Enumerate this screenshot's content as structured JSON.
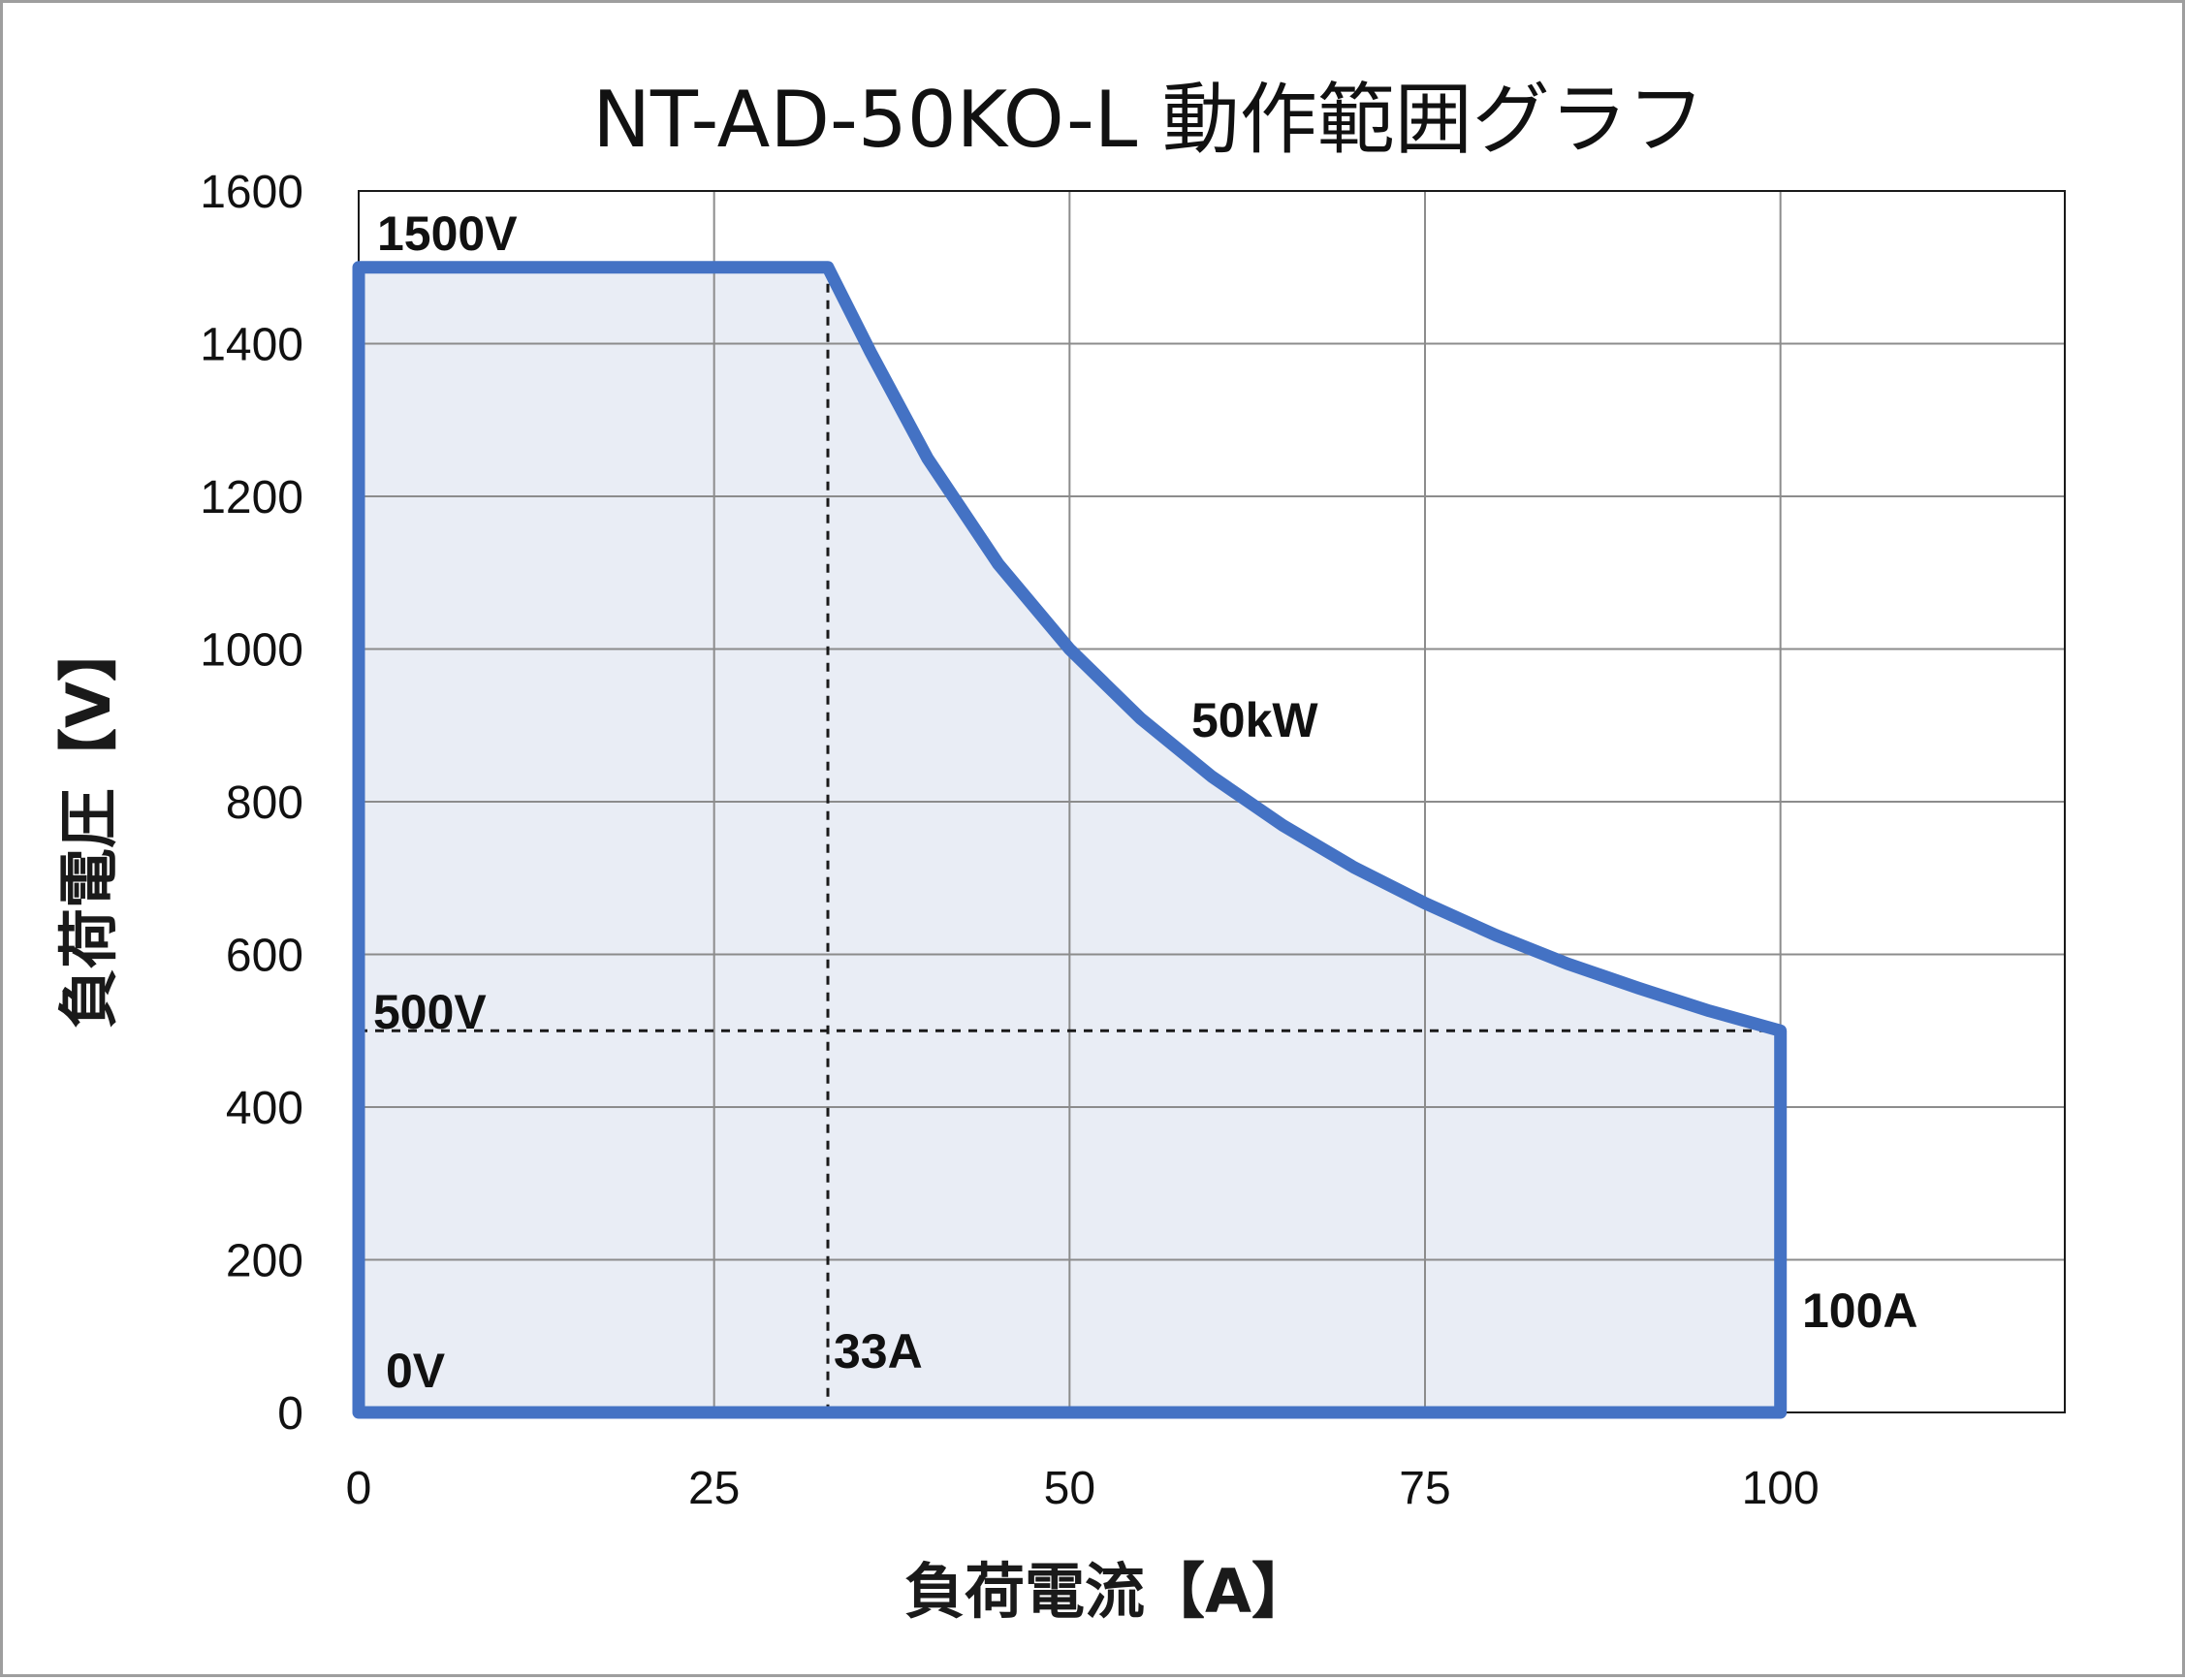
{
  "chart_data": {
    "type": "area",
    "title": "NT-AD-50KO-L  動作範囲グラフ",
    "xlabel": "負荷電流【A】",
    "ylabel": "負荷電圧【V】",
    "xlim": [
      0,
      120
    ],
    "ylim": [
      0,
      1600
    ],
    "x_ticks": [
      0,
      25,
      50,
      75,
      100
    ],
    "y_ticks": [
      0,
      200,
      400,
      600,
      800,
      1000,
      1200,
      1400,
      1600
    ],
    "grid": true,
    "series": [
      {
        "color": "#4472c4",
        "fill": "#e9edf5",
        "points": [
          [
            0,
            1500
          ],
          [
            33,
            1500
          ],
          [
            36,
            1389
          ],
          [
            40,
            1250
          ],
          [
            45,
            1111
          ],
          [
            50,
            1000
          ],
          [
            55,
            909
          ],
          [
            60,
            833
          ],
          [
            65,
            769
          ],
          [
            70,
            714
          ],
          [
            75,
            667
          ],
          [
            80,
            625
          ],
          [
            85,
            588
          ],
          [
            90,
            556
          ],
          [
            95,
            526
          ],
          [
            100,
            500
          ],
          [
            100,
            0
          ],
          [
            0,
            0
          ]
        ]
      }
    ],
    "reference_lines": [
      {
        "axis": "x",
        "value": 33,
        "style": "dashed"
      },
      {
        "axis": "y",
        "value": 500,
        "style": "dashed"
      }
    ],
    "annotations": {
      "v1500": "1500V",
      "v500": "500V",
      "v0": "0V",
      "a33": "33A",
      "a100": "100A",
      "kw50": "50kW"
    }
  }
}
